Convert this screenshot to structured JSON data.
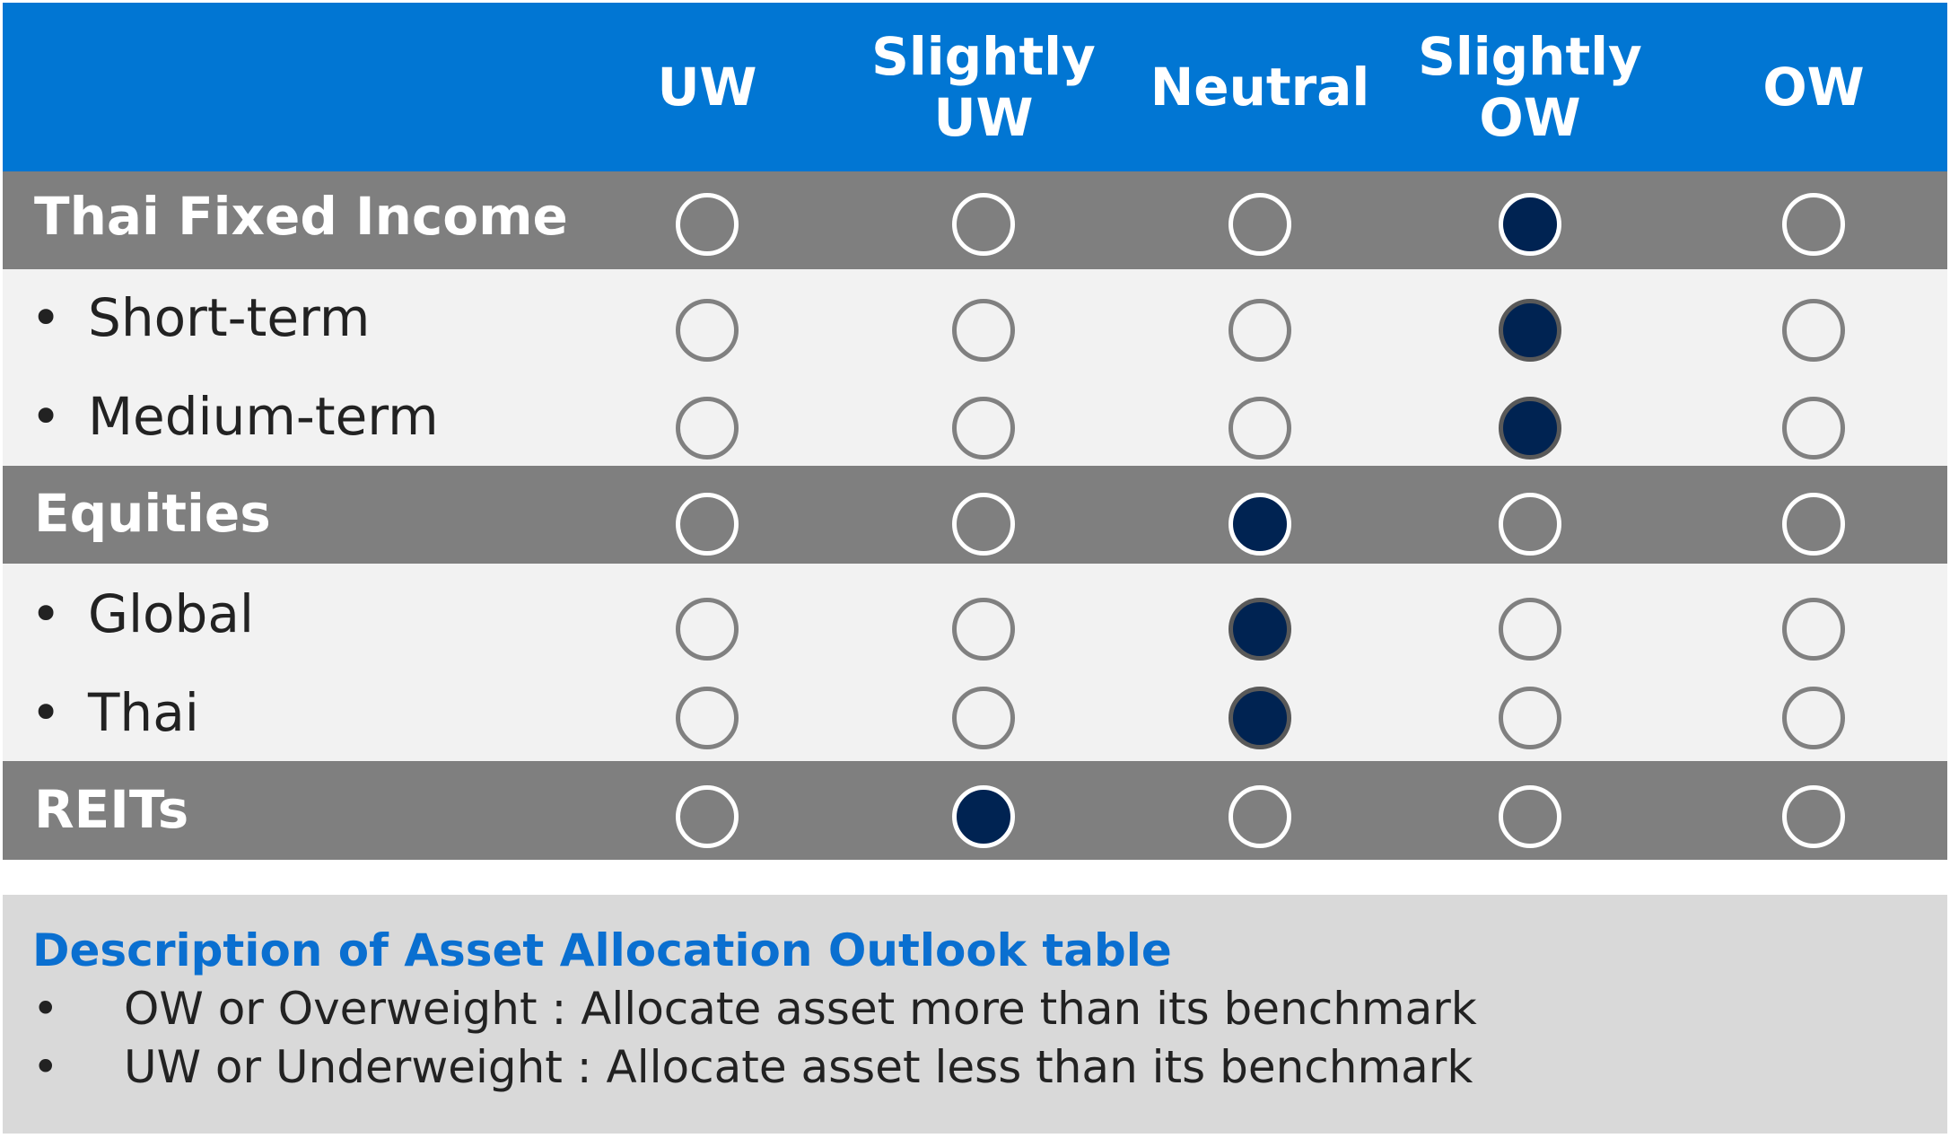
{
  "table": {
    "columns": [
      "UW",
      "Slightly\nUW",
      "Neutral",
      "Slightly\nOW",
      "OW"
    ],
    "rows": [
      {
        "label": "Thai Fixed Income",
        "kind": "category",
        "rating": "Slightly OW"
      },
      {
        "label": "Short-term",
        "kind": "sub",
        "rating": "Slightly OW"
      },
      {
        "label": "Medium-term",
        "kind": "sub",
        "rating": "Slightly OW"
      },
      {
        "label": "Equities",
        "kind": "category",
        "rating": "Neutral"
      },
      {
        "label": "Global",
        "kind": "sub",
        "rating": "Neutral"
      },
      {
        "label": "Thai",
        "kind": "sub",
        "rating": "Neutral"
      },
      {
        "label": "REITs",
        "kind": "category",
        "rating": "Slightly UW"
      }
    ]
  },
  "legend": {
    "title": "Description of Asset Allocation Outlook table",
    "items": [
      "OW or Overweight : Allocate asset more than its benchmark",
      "UW or Underweight : Allocate asset less than its benchmark"
    ]
  },
  "colors": {
    "header_bg": "#0176d3",
    "category_bg": "#7f7f7f",
    "sub_bg": "#f2f2f2",
    "filled_dot": "#002352",
    "legend_title": "#0a6fd0"
  },
  "icons": {
    "bullet": "•",
    "rating_dot": "circle-icon"
  }
}
